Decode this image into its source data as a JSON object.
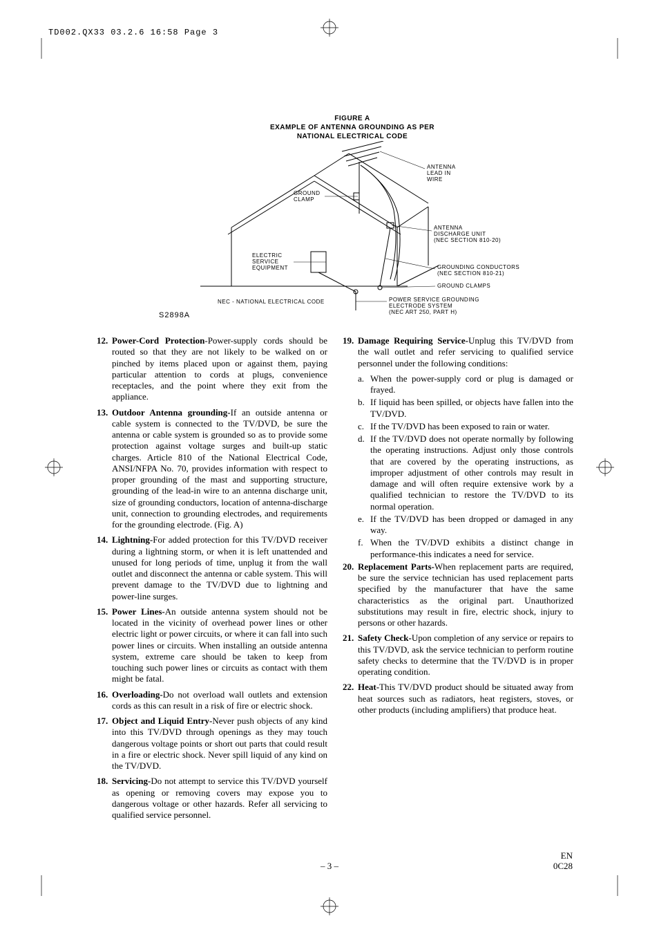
{
  "header": {
    "slug": "TD002.QX33  03.2.6  16:58  Page 3"
  },
  "figure": {
    "title_line1": "FIGURE A",
    "title_line2": "EXAMPLE OF ANTENNA GROUNDING AS PER",
    "title_line3": "NATIONAL ELECTRICAL CODE",
    "labels": {
      "antenna_lead": "ANTENNA\nLEAD IN\nWIRE",
      "ground_clamp_top": "GROUND\nCLAMP",
      "discharge_unit": "ANTENNA\nDISCHARGE UNIT\n(NEC SECTION 810-20)",
      "electric_service": "ELECTRIC\nSERVICE\nEQUIPMENT",
      "grounding_conductors": "GROUNDING CONDUCTORS\n(NEC SECTION 810-21)",
      "ground_clamps_bottom": "GROUND CLAMPS",
      "nec_note": "NEC - NATIONAL ELECTRICAL CODE",
      "power_service": "POWER SERVICE GROUNDING\nELECTRODE SYSTEM\n(NEC ART 250, PART H)"
    },
    "s_number": "S2898A"
  },
  "items_left": [
    {
      "n": "12.",
      "title": "Power-Cord Protection",
      "sep": "-",
      "text": "Power-supply cords should be routed so that they are not likely to be walked on or pinched by items placed upon or against them, paying particular attention to cords at plugs, convenience receptacles, and the point where they exit from the appliance."
    },
    {
      "n": "13.",
      "title": "Outdoor Antenna grounding-",
      "sep": "",
      "text": "If an outside antenna or cable system is connected to the TV/DVD, be sure the antenna or cable system is grounded so as to provide some protection against voltage surges and built-up static charges. Article 810 of the National Electrical Code, ANSI/NFPA No. 70, provides information with respect to proper grounding of the mast and supporting structure, grounding of the lead-in wire to an antenna discharge unit, size of grounding conductors, location of antenna-discharge unit, connection to grounding electrodes, and requirements for the grounding electrode. (Fig. A)"
    },
    {
      "n": "14.",
      "title": "Lightning-",
      "sep": "",
      "text": "For added protection for this TV/DVD receiver during a lightning storm, or when it is left unattended and unused for long periods of time, unplug it from the wall outlet and disconnect the antenna or cable system. This will prevent damage to the TV/DVD due to lightning and power-line surges."
    },
    {
      "n": "15.",
      "title": "Power Lines-",
      "sep": "",
      "text": "An outside antenna system should not be located in the vicinity of overhead power lines or other electric light or power circuits, or where it can fall into such power lines or circuits. When installing an outside antenna system, extreme care should be taken to keep from touching such power lines or circuits as contact with them might be fatal."
    },
    {
      "n": "16.",
      "title": "Overloading-",
      "sep": "",
      "text": "Do not overload wall outlets and extension cords as this can result in a risk of fire or electric shock."
    },
    {
      "n": "17.",
      "title": "Object and Liquid Entry-",
      "sep": "",
      "text": "Never push objects of any kind into this TV/DVD through openings as they may touch dangerous voltage points or short out parts that could result in a fire or electric shock. Never spill liquid of any kind on the TV/DVD."
    },
    {
      "n": "18.",
      "title": "Servicing-",
      "sep": "",
      "text": "Do not attempt to service this TV/DVD yourself as opening or removing covers may expose you to dangerous voltage or other hazards. Refer all servicing to qualified service personnel."
    }
  ],
  "items_right": [
    {
      "n": "19.",
      "title": "Damage Requiring Service-",
      "sep": "",
      "text": "Unplug this TV/DVD from the wall outlet and refer servicing to qualified service personnel under the following conditions:"
    }
  ],
  "subs_19": [
    {
      "l": "a.",
      "text": "When the power-supply cord or plug is damaged or frayed."
    },
    {
      "l": "b.",
      "text": "If liquid has been spilled, or objects have fallen into the TV/DVD."
    },
    {
      "l": "c.",
      "text": "If the TV/DVD has been exposed to rain or water."
    },
    {
      "l": "d.",
      "text": "If the TV/DVD does not operate normally by following the operating instructions. Adjust only those controls that are covered by the operating instructions, as improper adjustment of other controls may result in damage and will often require extensive work by a qualified technician to restore the TV/DVD to its normal operation."
    },
    {
      "l": "e.",
      "text": "If the TV/DVD has been dropped or damaged in any way."
    },
    {
      "l": "f.",
      "text": "When the TV/DVD exhibits a distinct change in performance-this indicates a need for service."
    }
  ],
  "items_right_after": [
    {
      "n": "20.",
      "title": "Replacement Parts-",
      "sep": "",
      "text": "When replacement parts are required, be sure the service technician has used replacement parts specified by the manufacturer that have the same characteristics as the original part. Unauthorized substitutions may result in fire, electric shock, injury to persons or other hazards."
    },
    {
      "n": "21.",
      "title": "Safety Check-",
      "sep": "",
      "text": "Upon completion of any service or repairs to this TV/DVD, ask the service technician to perform routine safety checks to determine that the TV/DVD is in proper operating condition."
    },
    {
      "n": "22.",
      "title": "Heat-",
      "sep": "",
      "text": "This TV/DVD product should be situated away from heat sources such as radiators, heat registers, stoves, or other products (including amplifiers) that produce heat."
    }
  ],
  "footer": {
    "page": "– 3 –",
    "right1": "EN",
    "right2": "0C28"
  },
  "colors": {
    "text": "#000000",
    "bg": "#ffffff"
  }
}
